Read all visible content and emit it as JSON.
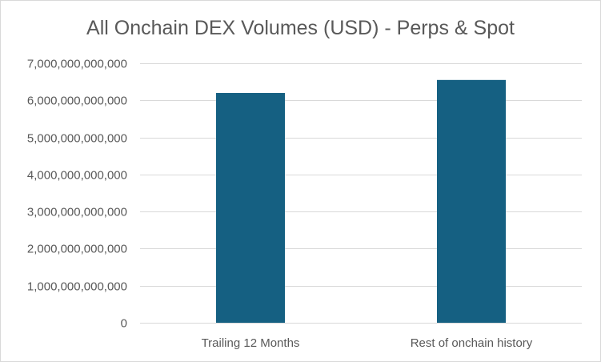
{
  "chart_data": {
    "type": "bar",
    "title": "All Onchain DEX Volumes (USD) - Perps & Spot",
    "categories": [
      "Trailing 12 Months",
      "Rest of onchain history"
    ],
    "values": [
      6200000000000,
      6550000000000
    ],
    "ylim": [
      0,
      7000000000000
    ],
    "yticks": [
      0,
      1000000000000,
      2000000000000,
      3000000000000,
      4000000000000,
      5000000000000,
      6000000000000,
      7000000000000
    ],
    "ytick_labels": [
      "0",
      "1,000,000,000,000",
      "2,000,000,000,000",
      "3,000,000,000,000",
      "4,000,000,000,000",
      "5,000,000,000,000",
      "6,000,000,000,000",
      "7,000,000,000,000"
    ],
    "xlabel": "",
    "ylabel": "",
    "grid": true,
    "legend": "none",
    "bar_color": "#156082",
    "grid_color": "#d9d9d9"
  }
}
